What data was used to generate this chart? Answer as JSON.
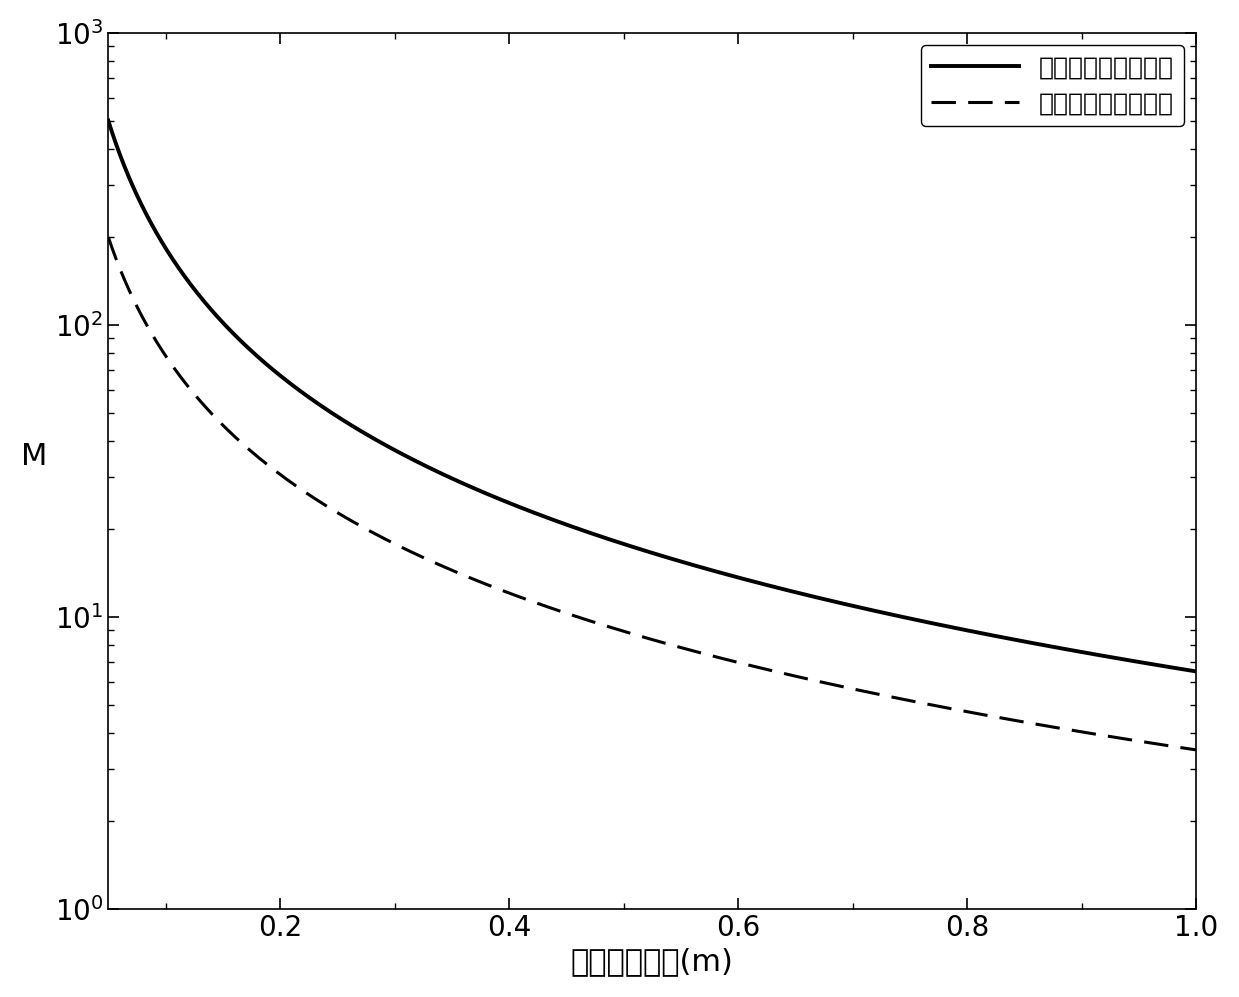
{
  "xlabel": "发射系统孔径(m)",
  "ylabel": "M",
  "xlim": [
    0.05,
    1.0
  ],
  "ylim": [
    1,
    1000
  ],
  "x_ticks": [
    0.2,
    0.4,
    0.6,
    0.8,
    1.0
  ],
  "legend_solid": "圆形孔径，高斯分布",
  "legend_dashed": "圆形孔径，均匀分布",
  "line_color": "#000000",
  "background_color": "#ffffff",
  "solid_linewidth": 2.8,
  "dashed_linewidth": 2.2,
  "A_gauss": 6.5,
  "n_gauss": -1.45,
  "A_uniform": 3.5,
  "n_uniform": -1.35,
  "xlabel_fontsize": 22,
  "ylabel_fontsize": 22,
  "tick_fontsize": 20,
  "legend_fontsize": 18
}
